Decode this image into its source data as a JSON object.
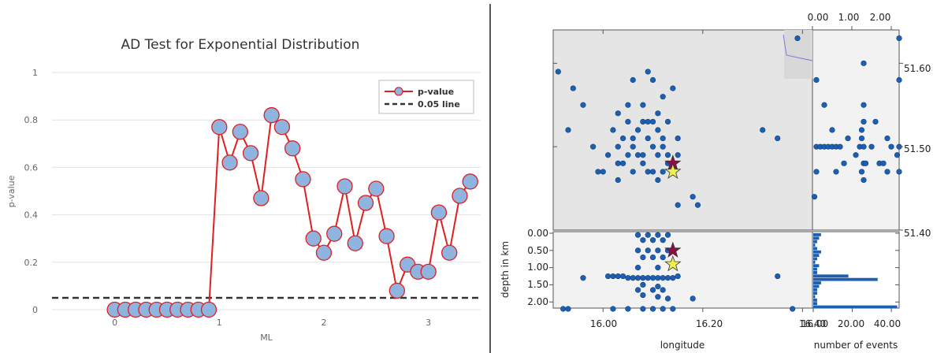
{
  "chart_data": [
    {
      "type": "line",
      "title": "AD Test for Exponential Distribution",
      "xlabel": "ML",
      "ylabel": "p-value",
      "xlim": [
        -0.6,
        3.5
      ],
      "ylim": [
        0,
        1
      ],
      "x_ticks": [
        "0",
        "1",
        "2",
        "3"
      ],
      "y_ticks": [
        "0",
        "0.2",
        "0.4",
        "0.6",
        "0.8",
        "1"
      ],
      "grid": "horizontal",
      "legend_position": "top-right",
      "series": [
        {
          "name": "p-value",
          "color": "#e02020",
          "marker_fill": "#8fb4e0",
          "x": [
            0.0,
            0.1,
            0.2,
            0.3,
            0.4,
            0.5,
            0.6,
            0.7,
            0.8,
            0.9,
            1.0,
            1.1,
            1.2,
            1.3,
            1.4,
            1.5,
            1.6,
            1.7,
            1.8,
            1.9,
            2.0,
            2.1,
            2.2,
            2.3,
            2.4,
            2.5,
            2.6,
            2.7,
            2.8,
            2.9,
            3.0,
            3.1,
            3.2,
            3.3,
            3.4
          ],
          "y": [
            0.0,
            0.0,
            0.0,
            0.0,
            0.0,
            0.0,
            0.0,
            0.0,
            0.0,
            0.0,
            0.77,
            0.62,
            0.75,
            0.66,
            0.47,
            0.82,
            0.77,
            0.68,
            0.55,
            0.3,
            0.24,
            0.32,
            0.52,
            0.28,
            0.45,
            0.51,
            0.31,
            0.08,
            0.19,
            0.16,
            0.16,
            0.41,
            0.24,
            0.48,
            0.54
          ]
        },
        {
          "name": "0.05 line",
          "color": "#333333",
          "style": "dashed",
          "y_constant": 0.05
        }
      ]
    },
    {
      "type": "scatter",
      "panel": "map",
      "xlim": [
        15.9,
        16.42
      ],
      "ylim": [
        51.4,
        51.64
      ],
      "x_ticks": [
        "16.00",
        "16.20",
        "16.40"
      ],
      "y_ticks": [
        "51.60",
        "51.50",
        "51.40"
      ],
      "point_color": "#1f5fb0",
      "background": "#e5e5e5",
      "points": [
        [
          15.91,
          51.59
        ],
        [
          15.94,
          51.57
        ],
        [
          16.1,
          51.58
        ],
        [
          16.14,
          51.57
        ],
        [
          16.06,
          51.58
        ],
        [
          16.09,
          51.59
        ],
        [
          15.96,
          51.55
        ],
        [
          16.03,
          51.54
        ],
        [
          16.05,
          51.55
        ],
        [
          16.08,
          51.55
        ],
        [
          16.12,
          51.56
        ],
        [
          16.11,
          51.54
        ],
        [
          16.13,
          51.53
        ],
        [
          16.05,
          51.53
        ],
        [
          16.08,
          51.53
        ],
        [
          16.11,
          51.52
        ],
        [
          15.93,
          51.52
        ],
        [
          16.02,
          51.52
        ],
        [
          16.06,
          51.51
        ],
        [
          16.09,
          51.51
        ],
        [
          16.1,
          51.5
        ],
        [
          16.12,
          51.51
        ],
        [
          16.15,
          51.51
        ],
        [
          16.03,
          51.5
        ],
        [
          16.05,
          51.49
        ],
        [
          16.07,
          51.49
        ],
        [
          16.08,
          51.49
        ],
        [
          16.11,
          51.49
        ],
        [
          16.13,
          51.49
        ],
        [
          16.01,
          51.49
        ],
        [
          15.98,
          51.5
        ],
        [
          16.04,
          51.48
        ],
        [
          16.08,
          51.48
        ],
        [
          16.09,
          51.47
        ],
        [
          16.1,
          51.47
        ],
        [
          16.12,
          51.47
        ],
        [
          16.13,
          51.48
        ],
        [
          15.99,
          51.47
        ],
        [
          16.0,
          51.47
        ],
        [
          16.06,
          51.47
        ],
        [
          16.11,
          51.46
        ],
        [
          16.03,
          51.46
        ],
        [
          16.15,
          51.49
        ],
        [
          16.07,
          51.52
        ],
        [
          16.04,
          51.51
        ],
        [
          16.09,
          51.53
        ],
        [
          16.12,
          51.5
        ],
        [
          16.06,
          51.5
        ],
        [
          16.03,
          51.48
        ],
        [
          16.1,
          51.53
        ],
        [
          16.18,
          51.44
        ],
        [
          16.19,
          51.43
        ],
        [
          16.15,
          51.43
        ],
        [
          16.32,
          51.52
        ],
        [
          16.35,
          51.51
        ],
        [
          16.39,
          51.63
        ]
      ],
      "markers": [
        {
          "name": "maroon-star",
          "x": 16.14,
          "y": 51.48,
          "color": "#8b1040"
        },
        {
          "name": "yellow-star",
          "x": 16.14,
          "y": 51.47,
          "color": "#f0f050"
        }
      ]
    },
    {
      "type": "scatter",
      "panel": "depth",
      "ylabel": "depth in km",
      "xlabel": "longitude",
      "xlim": [
        15.9,
        16.42
      ],
      "ylim": [
        2.2,
        0
      ],
      "x_ticks": [
        "16.00",
        "16.20",
        "16.40"
      ],
      "y_ticks": [
        "0.00",
        "0.50",
        "1.00",
        "1.50",
        "2.00"
      ],
      "point_color": "#1f5fb0",
      "points": [
        [
          16.07,
          0.05
        ],
        [
          16.09,
          0.05
        ],
        [
          16.11,
          0.05
        ],
        [
          16.13,
          0.05
        ],
        [
          16.08,
          0.2
        ],
        [
          16.1,
          0.2
        ],
        [
          16.12,
          0.2
        ],
        [
          16.07,
          0.5
        ],
        [
          16.09,
          0.5
        ],
        [
          16.11,
          0.5
        ],
        [
          16.13,
          0.5
        ],
        [
          16.08,
          0.7
        ],
        [
          16.1,
          0.7
        ],
        [
          16.12,
          0.7
        ],
        [
          16.07,
          1.0
        ],
        [
          16.11,
          1.0
        ],
        [
          15.96,
          1.3
        ],
        [
          16.01,
          1.25
        ],
        [
          16.02,
          1.25
        ],
        [
          16.03,
          1.25
        ],
        [
          16.04,
          1.25
        ],
        [
          16.05,
          1.3
        ],
        [
          16.06,
          1.3
        ],
        [
          16.07,
          1.3
        ],
        [
          16.08,
          1.3
        ],
        [
          16.09,
          1.3
        ],
        [
          16.1,
          1.3
        ],
        [
          16.11,
          1.3
        ],
        [
          16.12,
          1.3
        ],
        [
          16.13,
          1.3
        ],
        [
          16.14,
          1.3
        ],
        [
          16.15,
          1.25
        ],
        [
          16.08,
          1.5
        ],
        [
          16.11,
          1.55
        ],
        [
          16.07,
          1.65
        ],
        [
          16.1,
          1.65
        ],
        [
          16.12,
          1.65
        ],
        [
          16.08,
          1.8
        ],
        [
          16.11,
          1.85
        ],
        [
          16.13,
          1.9
        ],
        [
          16.18,
          1.9
        ],
        [
          16.35,
          1.25
        ],
        [
          15.92,
          2.2
        ],
        [
          15.93,
          2.2
        ],
        [
          16.02,
          2.2
        ],
        [
          16.05,
          2.2
        ],
        [
          16.08,
          2.2
        ],
        [
          16.1,
          2.2
        ],
        [
          16.12,
          2.2
        ],
        [
          16.14,
          2.2
        ],
        [
          16.38,
          2.2
        ]
      ],
      "markers": [
        {
          "name": "maroon-star",
          "x": 16.14,
          "y": 0.5,
          "color": "#8b1040"
        },
        {
          "name": "yellow-star",
          "x": 16.14,
          "y": 0.9,
          "color": "#f0f050"
        }
      ]
    },
    {
      "type": "scatter",
      "panel": "latitude-depth",
      "xlim": [
        0,
        2.2
      ],
      "ylim": [
        51.4,
        51.64
      ],
      "x_ticks": [
        "0.00",
        "1.00",
        "2.00"
      ],
      "point_color": "#1f5fb0",
      "points": [
        [
          0.1,
          51.58
        ],
        [
          0.3,
          51.55
        ],
        [
          0.5,
          51.52
        ],
        [
          0.1,
          51.5
        ],
        [
          0.2,
          51.5
        ],
        [
          0.3,
          51.5
        ],
        [
          0.4,
          51.5
        ],
        [
          0.5,
          51.5
        ],
        [
          0.6,
          51.5
        ],
        [
          0.7,
          51.5
        ],
        [
          0.1,
          51.47
        ],
        [
          0.6,
          51.47
        ],
        [
          0.8,
          51.48
        ],
        [
          0.9,
          51.51
        ],
        [
          1.1,
          51.49
        ],
        [
          1.2,
          51.5
        ],
        [
          1.25,
          51.51
        ],
        [
          1.3,
          51.5
        ],
        [
          1.25,
          51.52
        ],
        [
          1.3,
          51.53
        ],
        [
          1.3,
          51.55
        ],
        [
          1.25,
          51.47
        ],
        [
          1.3,
          51.48
        ],
        [
          1.35,
          51.48
        ],
        [
          1.3,
          51.46
        ],
        [
          1.5,
          51.5
        ],
        [
          1.6,
          51.53
        ],
        [
          1.7,
          51.48
        ],
        [
          1.8,
          51.48
        ],
        [
          1.9,
          51.47
        ],
        [
          2.0,
          51.5
        ],
        [
          2.15,
          51.49
        ],
        [
          2.2,
          51.5
        ],
        [
          2.2,
          51.47
        ],
        [
          2.2,
          51.58
        ],
        [
          1.9,
          51.51
        ],
        [
          1.3,
          51.6
        ],
        [
          2.2,
          51.63
        ],
        [
          0.05,
          51.44
        ]
      ]
    },
    {
      "type": "bar",
      "panel": "histogram",
      "orientation": "horizontal",
      "xlabel": "number of events",
      "xlim": [
        0,
        44
      ],
      "x_ticks": [
        "16.00",
        "20.00",
        "40.00"
      ],
      "y_ticks": [
        "0.00",
        "0.50",
        "1.00",
        "1.50",
        "2.00"
      ],
      "bar_color": "#1f5fb0",
      "depth_bins": [
        0.05,
        0.15,
        0.25,
        0.35,
        0.45,
        0.55,
        0.65,
        0.75,
        0.85,
        0.95,
        1.05,
        1.15,
        1.25,
        1.35,
        1.45,
        1.55,
        1.65,
        1.75,
        1.85,
        1.95,
        2.05,
        2.15
      ],
      "counts": [
        4,
        3,
        2,
        1,
        2,
        4,
        3,
        2,
        1,
        3,
        2,
        2,
        18,
        33,
        4,
        3,
        2,
        2,
        1,
        2,
        2,
        43
      ]
    }
  ]
}
